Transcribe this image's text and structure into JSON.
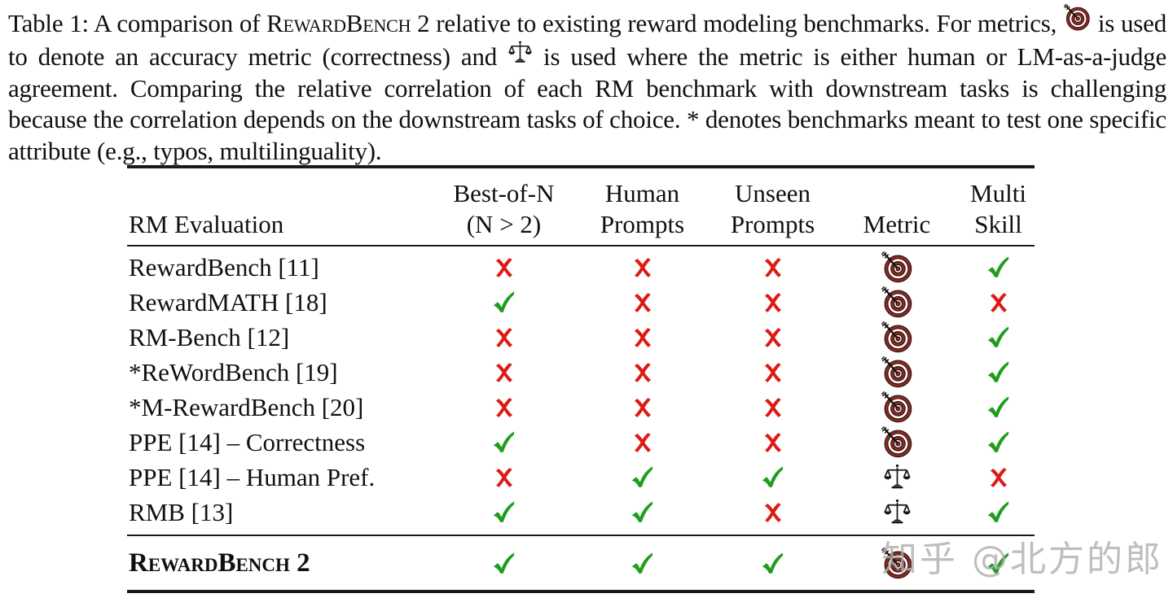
{
  "caption": {
    "segments": [
      {
        "type": "text",
        "value": "Table 1: A comparison of "
      },
      {
        "type": "smallcaps",
        "value": "RewardBench"
      },
      {
        "type": "text",
        "value": " 2 relative to existing reward modeling benchmarks. For metrics, "
      },
      {
        "type": "icon",
        "value": "target"
      },
      {
        "type": "text",
        "value": " is used to denote an accuracy metric (correctness) and "
      },
      {
        "type": "icon",
        "value": "scales"
      },
      {
        "type": "text",
        "value": " is used where the metric is either human or LM-as-a-judge agreement. Comparing the relative correlation of each RM benchmark with downstream tasks is challenging because the correlation depends on the downstream tasks of choice. * denotes benchmarks meant to test one specific attribute (e.g., typos, multilinguality)."
      }
    ]
  },
  "table": {
    "headers": [
      {
        "lines": [
          "RM Evaluation"
        ],
        "align": "left"
      },
      {
        "lines": [
          "Best-of-N",
          "(N > 2)"
        ],
        "align": "center"
      },
      {
        "lines": [
          "Human",
          "Prompts"
        ],
        "align": "center"
      },
      {
        "lines": [
          "Unseen",
          "Prompts"
        ],
        "align": "center"
      },
      {
        "lines": [
          "Metric"
        ],
        "align": "center"
      },
      {
        "lines": [
          "Multi",
          "Skill"
        ],
        "align": "center"
      }
    ],
    "rows": [
      {
        "label": "RewardBench [11]",
        "cells": [
          "cross",
          "cross",
          "cross",
          "target",
          "check"
        ]
      },
      {
        "label": "RewardMATH [18]",
        "cells": [
          "check",
          "cross",
          "cross",
          "target",
          "cross"
        ]
      },
      {
        "label": "RM-Bench [12]",
        "cells": [
          "cross",
          "cross",
          "cross",
          "target",
          "check"
        ]
      },
      {
        "label": "*ReWordBench [19]",
        "cells": [
          "cross",
          "cross",
          "cross",
          "target",
          "check"
        ]
      },
      {
        "label": "*M-RewardBench [20]",
        "cells": [
          "cross",
          "cross",
          "cross",
          "target",
          "check"
        ]
      },
      {
        "label": "PPE [14] – Correctness",
        "cells": [
          "check",
          "cross",
          "cross",
          "target",
          "check"
        ]
      },
      {
        "label": "PPE [14] – Human Pref.",
        "cells": [
          "cross",
          "check",
          "check",
          "scales",
          "cross"
        ]
      },
      {
        "label": "RMB [13]",
        "cells": [
          "check",
          "check",
          "cross",
          "scales",
          "check"
        ]
      }
    ],
    "final_row": {
      "label_smallcaps": "RewardBench",
      "label_suffix": " 2",
      "cells": [
        "check",
        "check",
        "check",
        "target",
        "check"
      ]
    }
  },
  "colors": {
    "check": "#1f9d1f",
    "cross": "#dd1b15",
    "target_ring": "#8e2a22",
    "text": "#101010",
    "rule": "#1a1a1a",
    "watermark": "#aeaeae"
  },
  "watermark": {
    "text": "知乎 @北方的郎"
  }
}
